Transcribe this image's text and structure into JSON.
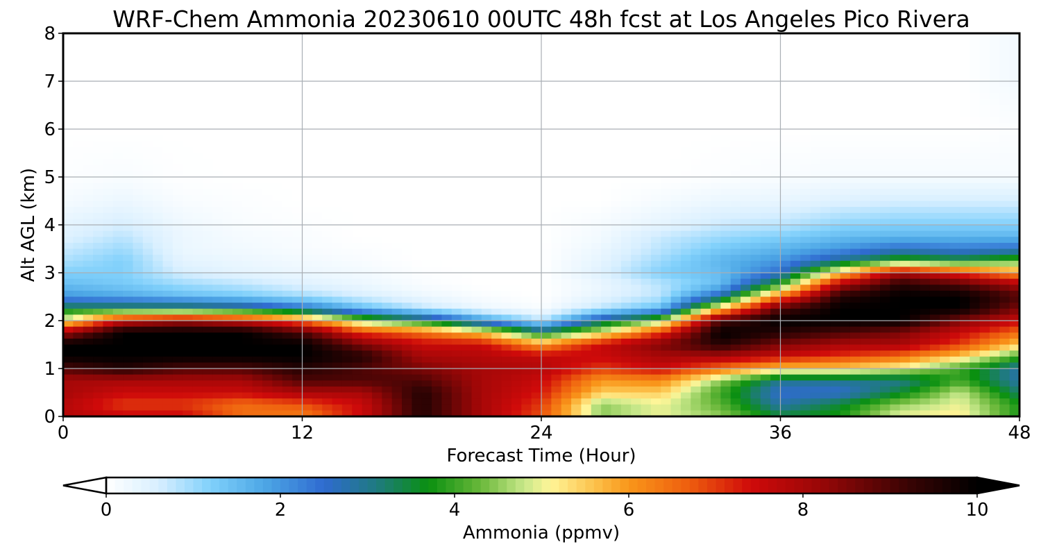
{
  "chart_data": {
    "type": "heatmap",
    "title": "WRF-Chem Ammonia  20230610 00UTC 48h fcst at Los Angeles Pico Rivera",
    "xlabel": "Forecast Time (Hour)",
    "ylabel": "Alt AGL (km)",
    "xlim": [
      0,
      48
    ],
    "ylim": [
      0,
      8
    ],
    "x_ticks": [
      "0",
      "12",
      "24",
      "36",
      "48"
    ],
    "y_ticks": [
      "0",
      "1",
      "2",
      "3",
      "4",
      "5",
      "6",
      "7",
      "8"
    ],
    "grid": true,
    "colorbar": {
      "label": "Ammonia  (ppmv)",
      "range": [
        0,
        10
      ],
      "extend": "both",
      "orientation": "horizontal",
      "ticks": [
        "0",
        "2",
        "4",
        "6",
        "8",
        "10"
      ],
      "colors": [
        {
          "v": 0,
          "c": "#ffffff"
        },
        {
          "v": 0.6,
          "c": "#d8efff"
        },
        {
          "v": 1.2,
          "c": "#80d0fb"
        },
        {
          "v": 1.8,
          "c": "#4ea8e6"
        },
        {
          "v": 2.5,
          "c": "#2f6bd0"
        },
        {
          "v": 3.1,
          "c": "#1f7a80"
        },
        {
          "v": 3.7,
          "c": "#0a9010"
        },
        {
          "v": 4.3,
          "c": "#6ab83a"
        },
        {
          "v": 4.8,
          "c": "#c8e88a"
        },
        {
          "v": 5.1,
          "c": "#fff598"
        },
        {
          "v": 5.6,
          "c": "#fcc24c"
        },
        {
          "v": 6.0,
          "c": "#f9961a"
        },
        {
          "v": 6.7,
          "c": "#ee5d0e"
        },
        {
          "v": 7.4,
          "c": "#cf0a0a"
        },
        {
          "v": 8.2,
          "c": "#990707"
        },
        {
          "v": 9.2,
          "c": "#3a0404"
        },
        {
          "v": 10,
          "c": "#000000"
        }
      ]
    },
    "grid_data": {
      "x": [
        0,
        3,
        6,
        9,
        12,
        15,
        18,
        21,
        24,
        27,
        30,
        33,
        36,
        39,
        42,
        45,
        48
      ],
      "y": [
        0,
        0.25,
        0.5,
        0.75,
        1,
        1.25,
        1.5,
        1.75,
        2,
        2.25,
        2.5,
        2.75,
        3,
        3.25,
        3.5,
        3.75,
        4,
        4.5,
        5,
        6,
        7,
        8
      ],
      "values": [
        [
          7.8,
          7.5,
          7.5,
          6.5,
          6.3,
          7.5,
          9.5,
          8,
          6.8,
          4.5,
          5,
          4.5,
          3.5,
          3.8,
          5,
          5.2,
          3.8
        ],
        [
          7.8,
          7,
          7,
          6.5,
          6.8,
          7.5,
          9.5,
          8,
          7,
          4.5,
          5,
          4.2,
          2.8,
          3.5,
          4.5,
          5,
          3.8
        ],
        [
          8,
          7.5,
          7.5,
          7.5,
          8,
          8,
          9.5,
          8,
          7.3,
          5.5,
          5.5,
          4,
          2.5,
          2.5,
          3.5,
          4.8,
          3.2
        ],
        [
          8,
          8,
          8,
          8,
          9,
          9,
          9,
          8,
          7.5,
          6,
          6.2,
          4.5,
          3,
          3,
          3,
          4,
          2.8
        ],
        [
          9,
          9.5,
          9,
          9,
          9.5,
          9,
          8.5,
          8,
          7.8,
          7,
          7.5,
          6.5,
          5.5,
          5.5,
          5,
          4,
          2.8
        ],
        [
          10,
          10,
          10,
          10,
          10,
          9.5,
          8,
          7.8,
          7.6,
          7.5,
          8,
          8,
          7.5,
          7,
          6.5,
          5.5,
          4
        ],
        [
          10,
          10,
          10,
          10,
          10,
          8.5,
          7.5,
          7.5,
          6,
          7.5,
          8.5,
          9.5,
          8.5,
          8,
          8,
          7,
          5.5
        ],
        [
          8,
          10,
          10,
          10,
          9,
          7,
          6.5,
          5.5,
          3.5,
          5,
          7,
          10,
          9.5,
          9,
          8.5,
          7.5,
          6.5
        ],
        [
          5,
          7.5,
          8,
          7.5,
          6.5,
          4.5,
          3.5,
          2,
          0.8,
          3,
          4.5,
          9,
          10,
          10,
          10,
          8.5,
          7.5
        ],
        [
          3.5,
          3.5,
          3.5,
          3.2,
          2.5,
          1.5,
          0.8,
          0.3,
          0.1,
          0.8,
          1.5,
          5.5,
          9,
          10,
          10,
          10,
          8.5
        ],
        [
          2,
          1.8,
          1.5,
          1.3,
          1,
          0.6,
          0.3,
          0.1,
          0,
          0.4,
          0.8,
          2.8,
          6.5,
          9.5,
          10,
          10,
          9
        ],
        [
          1.5,
          1.3,
          1,
          0.8,
          0.5,
          0.3,
          0.1,
          0,
          0,
          0.3,
          0.8,
          1.5,
          4,
          8,
          9.5,
          9,
          8
        ],
        [
          1.2,
          1.2,
          0.6,
          0.4,
          0.3,
          0.2,
          0.05,
          0,
          0,
          0.5,
          1.2,
          1.5,
          2.5,
          5.5,
          8,
          7,
          6
        ],
        [
          0.9,
          1.2,
          0.4,
          0.3,
          0.2,
          0.1,
          0,
          0,
          0,
          0.4,
          1,
          1.6,
          2,
          3,
          4,
          3.6,
          4.2
        ],
        [
          0.7,
          1,
          0.3,
          0.2,
          0.1,
          0.05,
          0,
          0,
          0,
          0.3,
          0.8,
          1.3,
          1.6,
          2,
          2.5,
          2.3,
          2.5
        ],
        [
          0.5,
          0.8,
          0.3,
          0.15,
          0.1,
          0,
          0,
          0,
          0,
          0.2,
          0.7,
          1,
          1.2,
          1.5,
          1.6,
          1.6,
          1.6
        ],
        [
          0.4,
          0.6,
          0.25,
          0.1,
          0.05,
          0,
          0,
          0,
          0,
          0.15,
          0.4,
          0.7,
          0.8,
          1.1,
          1.2,
          1.2,
          1.2
        ],
        [
          0.15,
          0.3,
          0.1,
          0.05,
          0,
          0,
          0,
          0,
          0,
          0,
          0.15,
          0.3,
          0.35,
          0.5,
          0.6,
          0.6,
          0.6
        ],
        [
          0.05,
          0.1,
          0.02,
          0,
          0,
          0,
          0,
          0,
          0,
          0,
          0,
          0.05,
          0.1,
          0.15,
          0.15,
          0.15,
          0.15
        ],
        [
          0,
          0,
          0,
          0,
          0,
          0,
          0,
          0,
          0,
          0,
          0,
          0,
          0,
          0,
          0,
          0,
          0.05
        ],
        [
          0,
          0,
          0,
          0,
          0,
          0,
          0,
          0,
          0,
          0,
          0,
          0,
          0,
          0,
          0,
          0,
          0.2
        ],
        [
          0,
          0,
          0,
          0,
          0,
          0,
          0,
          0,
          0,
          0,
          0,
          0,
          0,
          0,
          0,
          0,
          0.2
        ]
      ]
    }
  }
}
